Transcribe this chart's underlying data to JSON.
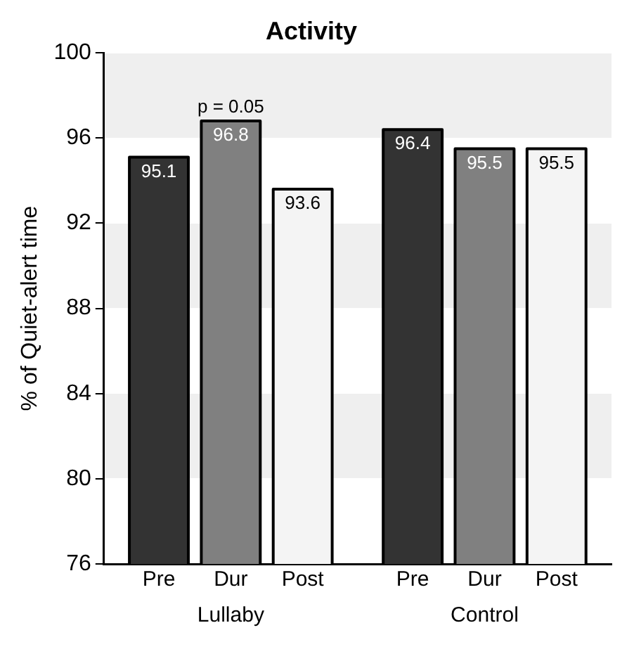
{
  "chart_data": {
    "type": "bar",
    "title": "Activity",
    "ylabel": "% of Quiet-alert time",
    "categories": [
      "Lullaby",
      "Control"
    ],
    "series": [
      {
        "name": "Pre",
        "color": "#333333",
        "values": [
          95.1,
          96.4
        ]
      },
      {
        "name": "Dur",
        "color": "#808080",
        "values": [
          96.8,
          95.5
        ]
      },
      {
        "name": "Post",
        "color": "#f4f4f4",
        "values": [
          93.6,
          95.5
        ]
      }
    ],
    "ylim": [
      76,
      100
    ],
    "yticks": [
      76,
      80,
      84,
      88,
      92,
      96,
      100
    ],
    "data_labels": true,
    "grid": false,
    "legend": false,
    "annotations": [
      {
        "text": "p = 0.05",
        "x": "Lullaby",
        "y": 96.8
      }
    ]
  }
}
